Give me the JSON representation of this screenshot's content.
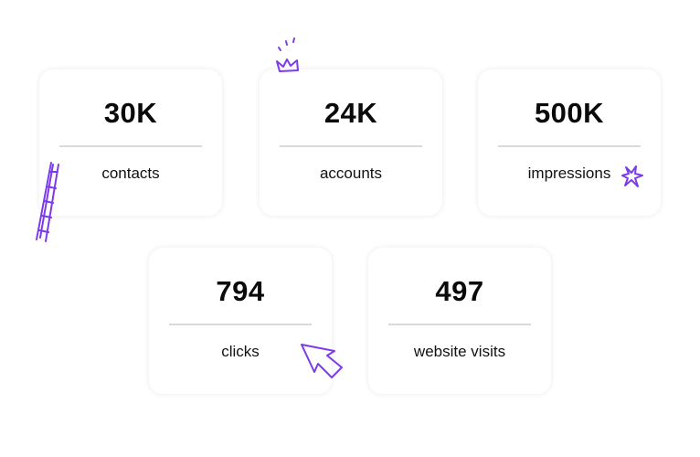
{
  "stats": [
    {
      "value": "30K",
      "label": "contacts"
    },
    {
      "value": "24K",
      "label": "accounts"
    },
    {
      "value": "500K",
      "label": "impressions"
    },
    {
      "value": "794",
      "label": "clicks"
    },
    {
      "value": "497",
      "label": "website visits"
    }
  ],
  "decorations": [
    "ladder-icon",
    "crown-icon",
    "sparkle-icon",
    "cursor-arrow-icon"
  ],
  "colors": {
    "accent": "#7c3aed",
    "divider": "#d9d9d9",
    "text": "#0a0a0a"
  }
}
